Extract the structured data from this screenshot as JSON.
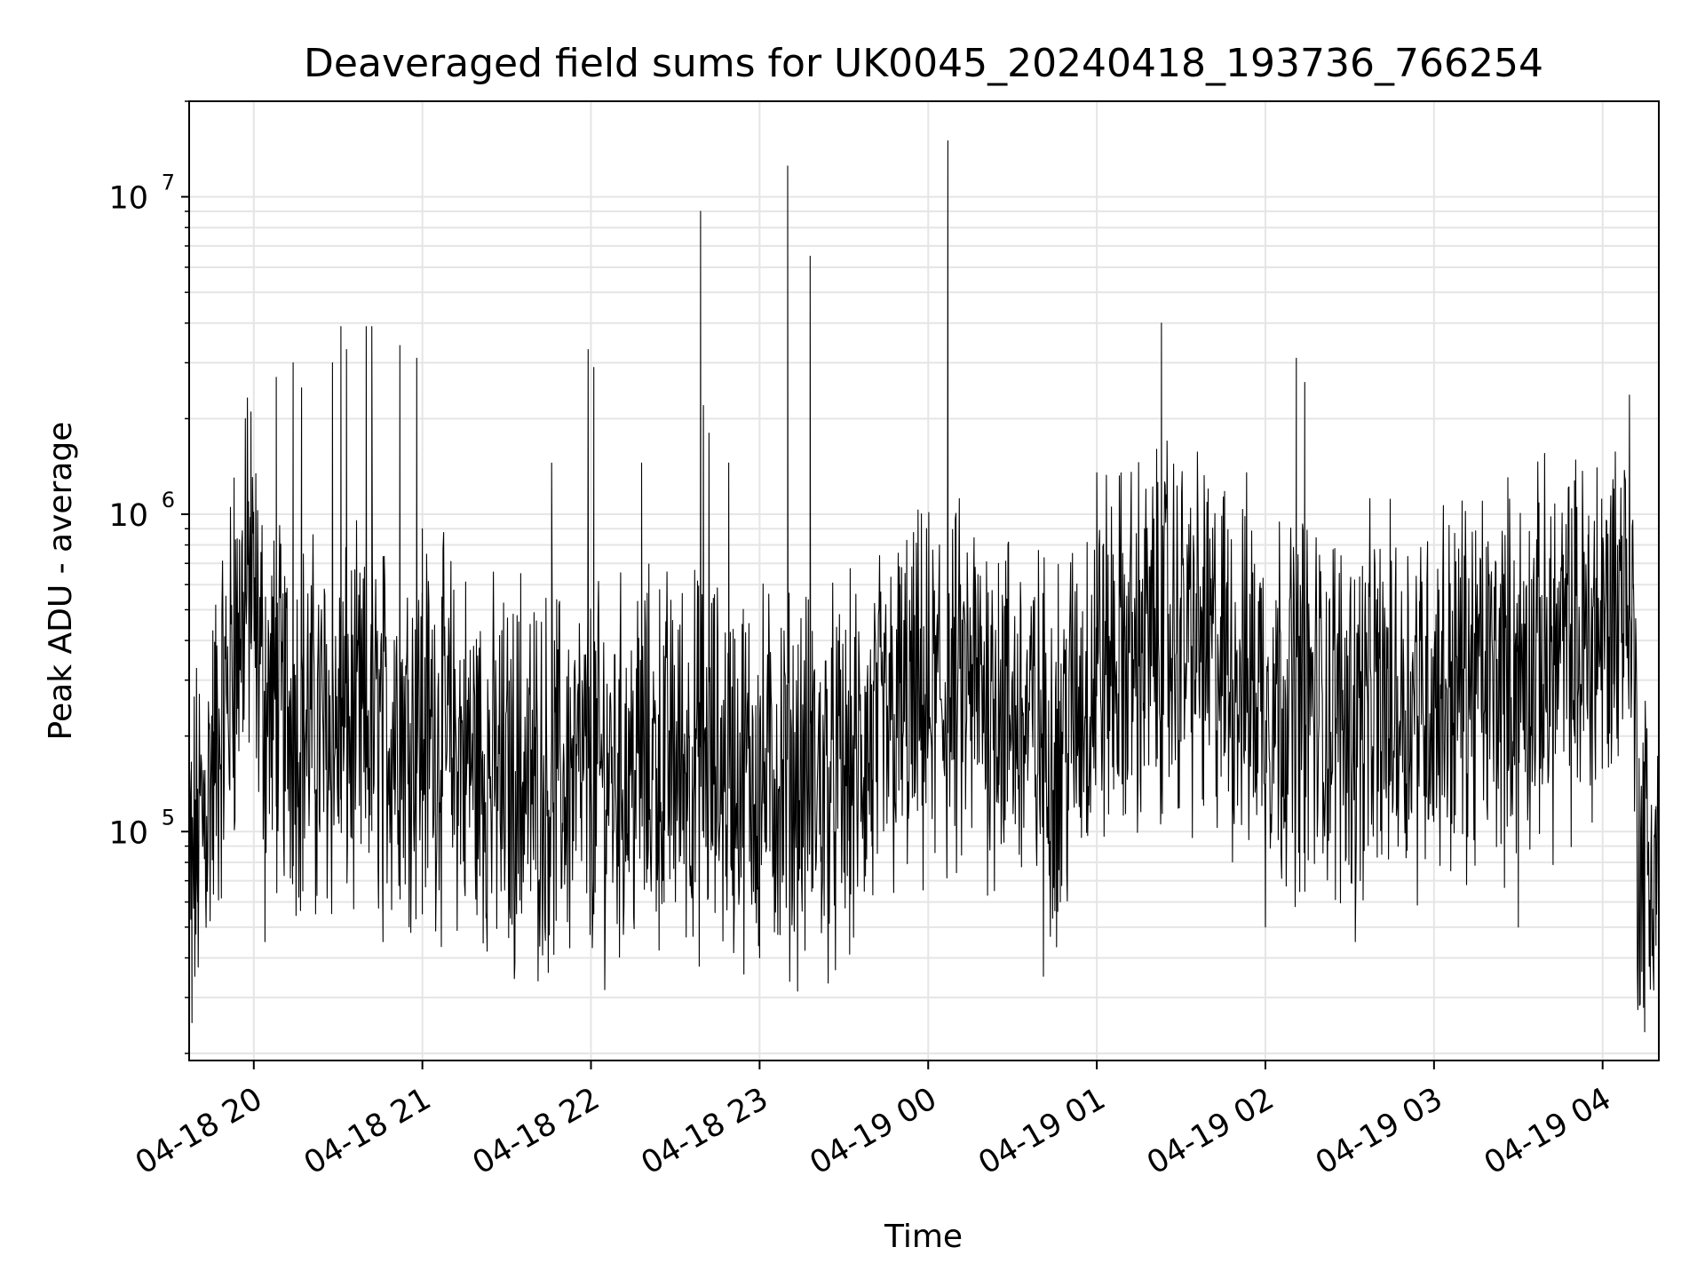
{
  "chart_data": {
    "type": "line",
    "title": "Deaveraged field sums for UK0045_20240418_193736_766254",
    "xlabel": "Time",
    "ylabel": "Peak ADU - average",
    "yscale": "log",
    "ylim": [
      19000,
      20000000
    ],
    "xlim": [
      "2024-04-18 19:37",
      "2024-04-19 04:20"
    ],
    "x_ticks": [
      "04-18 20",
      "04-18 21",
      "04-18 22",
      "04-18 23",
      "04-19 00",
      "04-19 01",
      "04-19 02",
      "04-19 03",
      "04-19 04"
    ],
    "y_ticks": [
      {
        "base": "10",
        "exp": "5"
      },
      {
        "base": "10",
        "exp": "6"
      },
      {
        "base": "10",
        "exp": "7"
      }
    ],
    "grid": true,
    "line_color": "#000000",
    "grid_color": "#e5e5e5",
    "series": [
      {
        "points": [
          [
            "2024-04-18 19:37",
            90000
          ],
          [
            "2024-04-18 19:38",
            25000
          ],
          [
            "2024-04-18 19:40",
            60000
          ],
          [
            "2024-04-18 19:42",
            100000
          ],
          [
            "2024-04-18 19:46",
            140000
          ],
          [
            "2024-04-18 19:50",
            350000
          ],
          [
            "2024-04-18 19:53",
            1300000
          ],
          [
            "2024-04-18 19:57",
            2000000
          ],
          [
            "2024-04-18 19:59",
            2100000
          ],
          [
            "2024-04-18 20:00",
            700000
          ],
          [
            "2024-04-18 20:03",
            600000
          ],
          [
            "2024-04-18 20:04",
            45000
          ],
          [
            "2024-04-18 20:08",
            2700000
          ],
          [
            "2024-04-18 20:14",
            3000000
          ],
          [
            "2024-04-18 20:17",
            2500000
          ],
          [
            "2024-04-18 20:22",
            55000
          ],
          [
            "2024-04-18 20:28",
            3000000
          ],
          [
            "2024-04-18 20:31",
            3900000
          ],
          [
            "2024-04-18 20:33",
            3300000
          ],
          [
            "2024-04-18 20:37",
            400000
          ],
          [
            "2024-04-18 20:40",
            3900000
          ],
          [
            "2024-04-18 20:42",
            3900000
          ],
          [
            "2024-04-18 20:46",
            45000
          ],
          [
            "2024-04-18 20:50",
            400000
          ],
          [
            "2024-04-18 20:52",
            3400000
          ],
          [
            "2024-04-18 20:55",
            300000
          ],
          [
            "2024-04-18 20:58",
            3100000
          ],
          [
            "2024-04-18 21:00",
            55000
          ],
          [
            "2024-04-18 21:00",
            900000
          ],
          [
            "2024-04-18 21:10",
            400000
          ],
          [
            "2024-04-18 21:20",
            100000
          ],
          [
            "2024-04-18 21:28",
            65000
          ],
          [
            "2024-04-18 21:35",
            650000
          ],
          [
            "2024-04-18 21:40",
            150000
          ],
          [
            "2024-04-18 21:46",
            1450000
          ],
          [
            "2024-04-18 21:50",
            100000
          ],
          [
            "2024-04-18 21:58",
            200000
          ],
          [
            "2024-04-18 21:59",
            3300000
          ],
          [
            "2024-04-18 22:01",
            2900000
          ],
          [
            "2024-04-18 22:01",
            55000
          ],
          [
            "2024-04-18 22:10",
            200000
          ],
          [
            "2024-04-18 22:18",
            1450000
          ],
          [
            "2024-04-18 22:26",
            60000
          ],
          [
            "2024-04-18 22:35",
            200000
          ],
          [
            "2024-04-18 22:39",
            9000000
          ],
          [
            "2024-04-18 22:40",
            2200000
          ],
          [
            "2024-04-18 22:42",
            1800000
          ],
          [
            "2024-04-18 22:49",
            1450000
          ],
          [
            "2024-04-18 23:00",
            40000
          ],
          [
            "2024-04-18 23:10",
            300000
          ],
          [
            "2024-04-18 23:10",
            12500000
          ],
          [
            "2024-04-18 23:16",
            150000
          ],
          [
            "2024-04-18 23:18",
            6500000
          ],
          [
            "2024-04-18 23:22",
            48000
          ],
          [
            "2024-04-18 23:32",
            150000
          ],
          [
            "2024-04-18 23:40",
            90000
          ],
          [
            "2024-04-18 23:50",
            600000
          ],
          [
            "2024-04-18 23:58",
            250000
          ],
          [
            "2024-04-19 00:04",
            800000
          ],
          [
            "2024-04-19 00:07",
            15000000
          ],
          [
            "2024-04-19 00:15",
            300000
          ],
          [
            "2024-04-19 00:25",
            700000
          ],
          [
            "2024-04-19 00:41",
            35000
          ],
          [
            "2024-04-19 00:47",
            60000
          ],
          [
            "2024-04-19 00:55",
            300000
          ],
          [
            "2024-04-19 01:00",
            1350000
          ],
          [
            "2024-04-19 01:10",
            400000
          ],
          [
            "2024-04-19 01:17",
            900000
          ],
          [
            "2024-04-19 01:23",
            4000000
          ],
          [
            "2024-04-19 01:25",
            1700000
          ],
          [
            "2024-04-19 01:35",
            300000
          ],
          [
            "2024-04-19 01:45",
            1100000
          ],
          [
            "2024-04-19 02:00",
            50000
          ],
          [
            "2024-04-19 02:07",
            300000
          ],
          [
            "2024-04-19 02:11",
            3100000
          ],
          [
            "2024-04-19 02:14",
            2600000
          ],
          [
            "2024-04-19 02:25",
            200000
          ],
          [
            "2024-04-19 02:32",
            45000
          ],
          [
            "2024-04-19 02:40",
            250000
          ],
          [
            "2024-04-19 02:55",
            400000
          ],
          [
            "2024-04-19 03:10",
            1100000
          ],
          [
            "2024-04-19 03:20",
            300000
          ],
          [
            "2024-04-19 03:30",
            50000
          ],
          [
            "2024-04-19 03:40",
            400000
          ],
          [
            "2024-04-19 03:50",
            200000
          ],
          [
            "2024-04-19 03:55",
            600000
          ],
          [
            "2024-04-19 03:58",
            1400000
          ],
          [
            "2024-04-19 04:04",
            1200000
          ],
          [
            "2024-04-19 04:08",
            1300000
          ],
          [
            "2024-04-19 04:11",
            600000
          ],
          [
            "2024-04-19 04:13",
            170000
          ],
          [
            "2024-04-19 04:14",
            45000
          ],
          [
            "2024-04-19 04:15",
            130000
          ],
          [
            "2024-04-19 04:17",
            40000
          ],
          [
            "2024-04-19 04:19",
            120000
          ],
          [
            "2024-04-19 04:20",
            60000
          ]
        ]
      }
    ]
  }
}
